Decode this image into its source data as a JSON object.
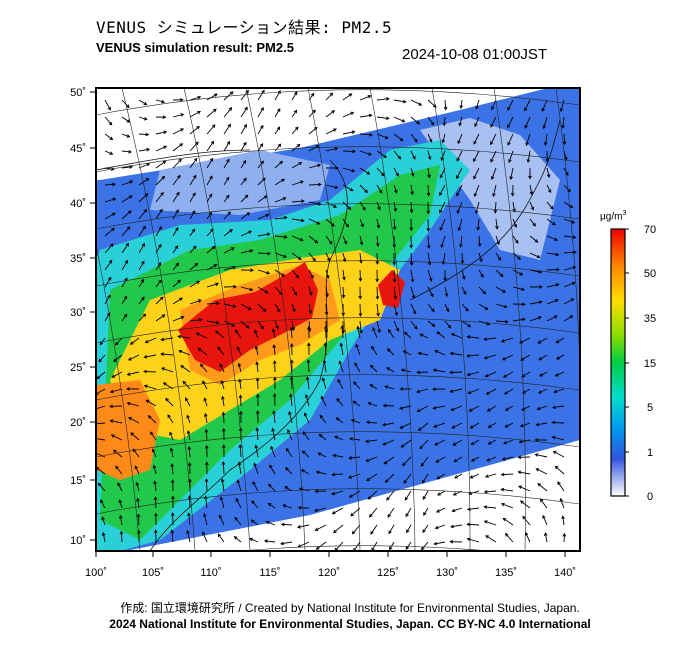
{
  "title_jp": "VENUS シミュレーション結果: PM2.5",
  "title_en": "VENUS simulation result: PM2.5",
  "timestamp": "2024-10-08 01:00JST",
  "credit": "作成: 国立環境研究所 / Created by National Institute for Environmental Studies, Japan.",
  "license": "2024 National Institute for Environmental Studies, Japan. CC BY-NC 4.0 International",
  "map": {
    "lon_ticks": [
      "100˚",
      "105˚",
      "110˚",
      "115˚",
      "120˚",
      "125˚",
      "130˚",
      "135˚",
      "140˚"
    ],
    "lat_ticks": [
      "50˚",
      "45˚",
      "40˚",
      "35˚",
      "30˚",
      "25˚",
      "20˚",
      "15˚",
      "10˚"
    ]
  },
  "colorbar": {
    "unit": "μg/m",
    "unit_sup": "3",
    "labels": [
      "70",
      "50",
      "35",
      "15",
      "5",
      "1",
      "0"
    ],
    "colors": [
      "#ee0000",
      "#ff8800",
      "#ffdd00",
      "#00cc00",
      "#00ddcc",
      "#0077ee",
      "#5060e8",
      "#ffffff"
    ]
  }
}
